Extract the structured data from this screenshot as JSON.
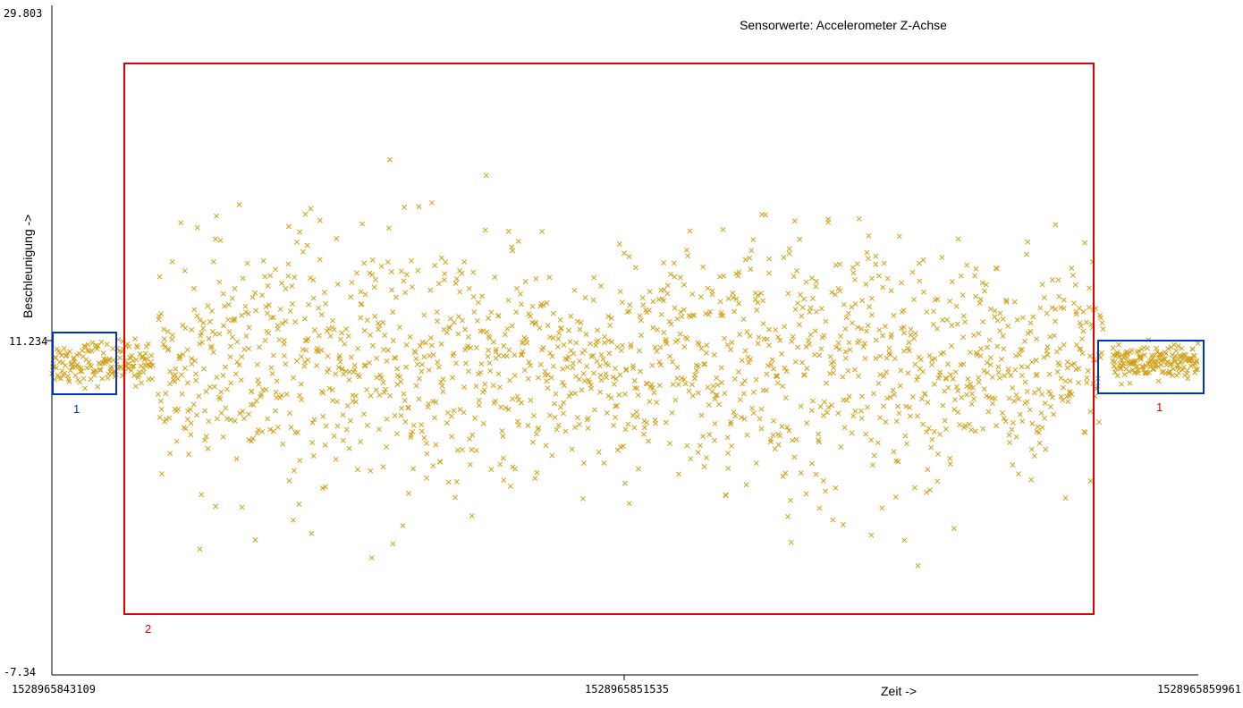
{
  "chart_data": {
    "type": "scatter",
    "title": "Sensorwerte: Accelerometer Z-Achse",
    "xlabel": "Zeit ->",
    "ylabel": "Beschleunigung ->",
    "x_ticks": [
      "1528965843109",
      "1528965851535",
      "1528965859961"
    ],
    "y_ticks": [
      "29.803",
      "11.234",
      "-7.34"
    ],
    "xlim": [
      1528965843109,
      1528965859961
    ],
    "ylim": [
      -7.34,
      29.803
    ],
    "marker": "x",
    "colors": {
      "points": "#d4a017",
      "marker_box": "#0033cc",
      "region_box": "#e00000",
      "axis": "#000000"
    },
    "segments": [
      {
        "label": "1",
        "x_start": 1528965843109,
        "x_end": 1528965844600,
        "mean": 10.0,
        "spread": 0.6,
        "count": 160
      },
      {
        "label": "2",
        "x_start": 1528965844650,
        "x_end": 1528965858550,
        "mean": 9.8,
        "spread": 3.4,
        "count": 1600
      },
      {
        "label": "1",
        "x_start": 1528965858700,
        "x_end": 1528965859961,
        "mean": 10.0,
        "spread": 0.5,
        "count": 170
      }
    ],
    "annotations": [
      {
        "label": "1",
        "color": "#0033cc",
        "x_range": [
          1528965843109,
          1528965844590
        ],
        "y_range": [
          8.2,
          11.7
        ]
      },
      {
        "label": "2",
        "color": "#e00000",
        "x_range": [
          1528965844780,
          1528965858570
        ],
        "y_range": [
          -3.9,
          26.8
        ]
      },
      {
        "label": "1",
        "color": "#0033cc",
        "x_range": [
          1528965858590,
          1528965861500
        ],
        "y_range": [
          8.2,
          11.2
        ]
      }
    ]
  }
}
